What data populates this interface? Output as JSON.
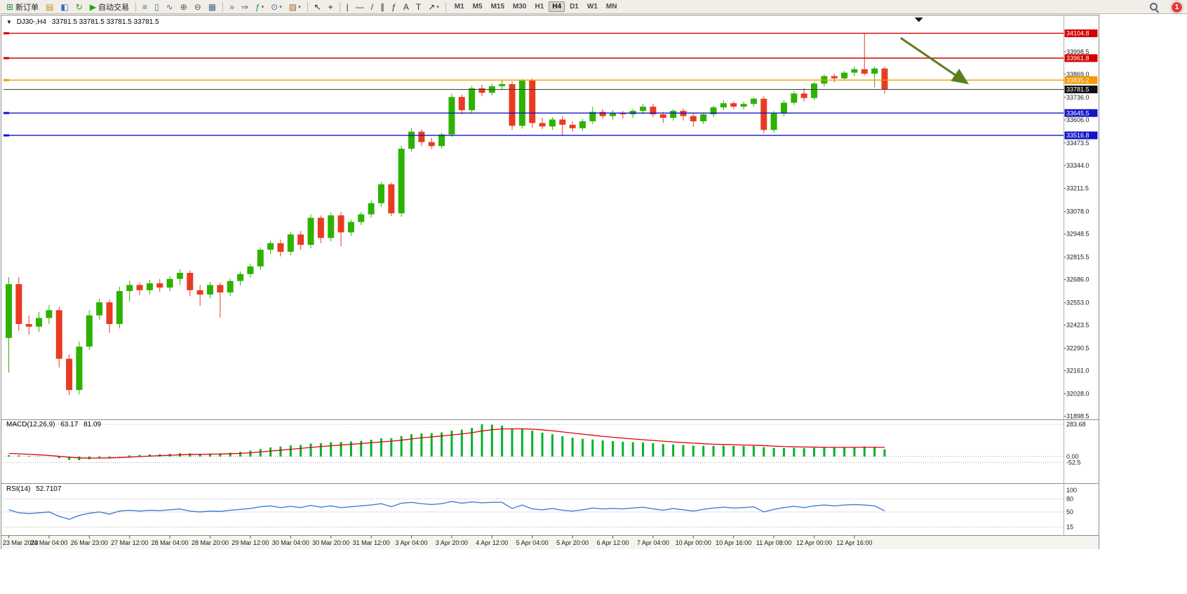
{
  "toolbar": {
    "items": [
      {
        "name": "new-order-button",
        "label": "新订单",
        "glyph": "⊞",
        "color": "#18923c"
      },
      {
        "name": "new-chart-icon",
        "glyph": "▤",
        "color": "#c09020"
      },
      {
        "name": "profiles-icon",
        "glyph": "◧",
        "color": "#3a6ec0"
      },
      {
        "name": "refresh-icon",
        "glyph": "↻",
        "color": "#28a028"
      },
      {
        "name": "autotrade-button",
        "label": "自动交易",
        "glyph": "▶",
        "color": "#18a818"
      },
      {
        "name": "sep"
      },
      {
        "name": "bar-chart-type-icon",
        "glyph": "≡",
        "color": "#50688c"
      },
      {
        "name": "candlestick-type-icon",
        "glyph": "▯",
        "color": "#50688c"
      },
      {
        "name": "line-chart-type-icon",
        "glyph": "∿",
        "color": "#50688c"
      },
      {
        "name": "zoom-in-icon",
        "glyph": "⊕",
        "color": "#555555"
      },
      {
        "name": "zoom-out-icon",
        "glyph": "⊖",
        "color": "#555555"
      },
      {
        "name": "tile-windows-icon",
        "glyph": "▦",
        "color": "#50688c"
      },
      {
        "name": "sep"
      },
      {
        "name": "autoscroll-icon",
        "glyph": "»",
        "color": "#50688c"
      },
      {
        "name": "chart-shift-icon",
        "glyph": "⇒",
        "color": "#50688c"
      },
      {
        "name": "indicators-icon",
        "glyph": "ƒ",
        "color": "#18923c",
        "caret": true
      },
      {
        "name": "periods-icon",
        "glyph": "⊙",
        "color": "#50688c",
        "caret": true
      },
      {
        "name": "templates-icon",
        "glyph": "▨",
        "color": "#a07030",
        "caret": true
      },
      {
        "name": "sep"
      },
      {
        "name": "cursor-icon",
        "glyph": "↖",
        "color": "#222222"
      },
      {
        "name": "crosshair-icon",
        "glyph": "+",
        "color": "#222222"
      },
      {
        "name": "sep"
      },
      {
        "name": "vline-icon",
        "glyph": "|",
        "color": "#333333"
      },
      {
        "name": "hline-icon",
        "glyph": "—",
        "color": "#333333"
      },
      {
        "name": "trendline-icon",
        "glyph": "/",
        "color": "#333333"
      },
      {
        "name": "channel-icon",
        "glyph": "∥",
        "color": "#333333"
      },
      {
        "name": "fibo-icon",
        "glyph": "ƒ",
        "color": "#333333"
      },
      {
        "name": "text-icon",
        "glyph": "A",
        "color": "#333333"
      },
      {
        "name": "label-icon",
        "glyph": "T",
        "color": "#333333"
      },
      {
        "name": "arrows-icon",
        "glyph": "↗",
        "color": "#333333",
        "caret": true
      },
      {
        "name": "sep"
      }
    ],
    "timeframes": [
      "M1",
      "M5",
      "M15",
      "M30",
      "H1",
      "H4",
      "D1",
      "W1",
      "MN"
    ],
    "active_timeframe": "H4",
    "notification_count": "1"
  },
  "header": {
    "toggle_glyph": "▼",
    "symbol_period": "DJ30-,H4",
    "quote": "33781.5 33781.5 33781.5 33781.5"
  },
  "chart_data": {
    "type": "candlestick",
    "symbol": "DJ30-",
    "timeframe": "H4",
    "ylim": [
      31885,
      34135
    ],
    "colors": {
      "up": "#2db200",
      "down": "#e83b22",
      "macd_hist": "#00b22d",
      "macd_signal": "#e00000",
      "rsi_line": "#4080d0",
      "current_price": "#3c3c3c"
    },
    "price_axis_ticks": [
      "33998.5",
      "33869.0",
      "33736.0",
      "33606.0",
      "33473.5",
      "33344.0",
      "33211.5",
      "33078.0",
      "32948.5",
      "32815.5",
      "32686.0",
      "32553.0",
      "32423.5",
      "32290.5",
      "32161.0",
      "32028.0",
      "31898.5"
    ],
    "hlines": [
      {
        "label": "34104.8",
        "price": 34104.8,
        "color": "#d40000"
      },
      {
        "label": "33961.8",
        "price": 33961.8,
        "color": "#d40000"
      },
      {
        "label": "33835.2",
        "price": 33835.2,
        "color": "#f59a00"
      },
      {
        "label": "33645.5",
        "price": 33645.5,
        "color": "#1414c8"
      },
      {
        "label": "33516.8",
        "price": 33516.8,
        "color": "#1414c8"
      }
    ],
    "current_price": {
      "label": "33781.5",
      "price": 33781.5
    },
    "ohlc": [
      [
        32350,
        32700,
        32150,
        32660
      ],
      [
        32660,
        32700,
        32390,
        32430
      ],
      [
        32430,
        32480,
        32370,
        32415
      ],
      [
        32415,
        32500,
        32385,
        32465
      ],
      [
        32465,
        32540,
        32430,
        32510
      ],
      [
        32510,
        32530,
        32180,
        32230
      ],
      [
        32230,
        32255,
        32020,
        32050
      ],
      [
        32050,
        32330,
        32025,
        32300
      ],
      [
        32300,
        32510,
        32280,
        32480
      ],
      [
        32480,
        32575,
        32455,
        32555
      ],
      [
        32555,
        32570,
        32380,
        32430
      ],
      [
        32430,
        32645,
        32405,
        32620
      ],
      [
        32620,
        32680,
        32560,
        32655
      ],
      [
        32655,
        32670,
        32595,
        32625
      ],
      [
        32625,
        32685,
        32600,
        32665
      ],
      [
        32665,
        32690,
        32615,
        32640
      ],
      [
        32640,
        32705,
        32620,
        32690
      ],
      [
        32690,
        32745,
        32655,
        32725
      ],
      [
        32725,
        32740,
        32590,
        32625
      ],
      [
        32625,
        32655,
        32535,
        32600
      ],
      [
        32600,
        32672,
        32578,
        32655
      ],
      [
        32655,
        32668,
        32468,
        32612
      ],
      [
        32612,
        32692,
        32592,
        32678
      ],
      [
        32678,
        32732,
        32652,
        32718
      ],
      [
        32718,
        32778,
        32698,
        32762
      ],
      [
        32762,
        32872,
        32742,
        32858
      ],
      [
        32858,
        32912,
        32832,
        32896
      ],
      [
        32896,
        32916,
        32820,
        32846
      ],
      [
        32846,
        32962,
        32826,
        32946
      ],
      [
        32946,
        32966,
        32858,
        32886
      ],
      [
        32886,
        33062,
        32866,
        33042
      ],
      [
        33042,
        33056,
        32896,
        32926
      ],
      [
        32926,
        33072,
        32906,
        33056
      ],
      [
        33056,
        33076,
        32878,
        32958
      ],
      [
        32958,
        33032,
        32938,
        33018
      ],
      [
        33018,
        33077,
        33000,
        33062
      ],
      [
        33062,
        33142,
        33042,
        33126
      ],
      [
        33126,
        33248,
        33106,
        33235
      ],
      [
        33235,
        33245,
        33052,
        33068
      ],
      [
        33068,
        33458,
        33048,
        33440
      ],
      [
        33440,
        33558,
        33425,
        33538
      ],
      [
        33538,
        33552,
        33455,
        33478
      ],
      [
        33478,
        33502,
        33438,
        33455
      ],
      [
        33455,
        33532,
        33442,
        33522
      ],
      [
        33522,
        33758,
        33508,
        33738
      ],
      [
        33738,
        33752,
        33638,
        33662
      ],
      [
        33662,
        33802,
        33648,
        33788
      ],
      [
        33788,
        33808,
        33742,
        33762
      ],
      [
        33762,
        33815,
        33746,
        33800
      ],
      [
        33800,
        33838,
        33778,
        33812
      ],
      [
        33812,
        33828,
        33548,
        33572
      ],
      [
        33572,
        33842,
        33556,
        33832
      ],
      [
        33832,
        33845,
        33562,
        33588
      ],
      [
        33588,
        33618,
        33552,
        33568
      ],
      [
        33568,
        33622,
        33548,
        33608
      ],
      [
        33608,
        33628,
        33518,
        33578
      ],
      [
        33578,
        33598,
        33538,
        33558
      ],
      [
        33558,
        33612,
        33542,
        33598
      ],
      [
        33598,
        33682,
        33582,
        33652
      ],
      [
        33652,
        33668,
        33612,
        33628
      ],
      [
        33628,
        33662,
        33608,
        33648
      ],
      [
        33648,
        33658,
        33612,
        33638
      ],
      [
        33638,
        33668,
        33618,
        33658
      ],
      [
        33658,
        33698,
        33638,
        33682
      ],
      [
        33682,
        33698,
        33622,
        33638
      ],
      [
        33638,
        33652,
        33588,
        33618
      ],
      [
        33618,
        33668,
        33602,
        33658
      ],
      [
        33658,
        33672,
        33602,
        33628
      ],
      [
        33628,
        33642,
        33568,
        33598
      ],
      [
        33598,
        33648,
        33582,
        33638
      ],
      [
        33638,
        33688,
        33622,
        33678
      ],
      [
        33678,
        33718,
        33662,
        33702
      ],
      [
        33702,
        33712,
        33668,
        33682
      ],
      [
        33682,
        33712,
        33666,
        33698
      ],
      [
        33698,
        33738,
        33682,
        33728
      ],
      [
        33728,
        33742,
        33528,
        33548
      ],
      [
        33548,
        33658,
        33532,
        33642
      ],
      [
        33642,
        33718,
        33628,
        33705
      ],
      [
        33705,
        33772,
        33692,
        33758
      ],
      [
        33758,
        33788,
        33712,
        33732
      ],
      [
        33732,
        33825,
        33718,
        33815
      ],
      [
        33815,
        33868,
        33798,
        33858
      ],
      [
        33858,
        33872,
        33822,
        33845
      ],
      [
        33845,
        33888,
        33832,
        33878
      ],
      [
        33878,
        33912,
        33858,
        33898
      ],
      [
        33898,
        34104.8,
        33862,
        33872
      ],
      [
        33872,
        33915,
        33792,
        33902
      ],
      [
        33902,
        33912,
        33756,
        33781.5
      ]
    ],
    "time_labels": [
      "23 Mar 2023",
      "24 Mar 04:00",
      "26 Mar 23:00",
      "27 Mar 12:00",
      "28 Mar 04:00",
      "28 Mar 20:00",
      "29 Mar 12:00",
      "30 Mar 04:00",
      "30 Mar 20:00",
      "31 Mar 12:00",
      "3 Apr 04:00",
      "3 Apr 20:00",
      "4 Apr 12:00",
      "5 Apr 04:00",
      "5 Apr 20:00",
      "6 Apr 12:00",
      "7 Apr 04:00",
      "10 Apr 00:00",
      "10 Apr 16:00",
      "11 Apr 08:00",
      "12 Apr 00:00",
      "12 Apr 16:00"
    ],
    "label_step": 4,
    "macd": {
      "label": "MACD(12,26,9)",
      "value_main": "63.17",
      "value_signal": "81.09",
      "axis_labels": [
        "283.68",
        "0.00",
        "-52.5"
      ],
      "axis_values": [
        283.68,
        0,
        -52.5
      ],
      "main": [
        12,
        10,
        6,
        2,
        -2,
        -14,
        -30,
        -32,
        -24,
        -12,
        -10,
        2,
        10,
        14,
        18,
        20,
        24,
        30,
        28,
        24,
        26,
        28,
        34,
        42,
        52,
        66,
        80,
        88,
        98,
        102,
        114,
        118,
        126,
        128,
        132,
        138,
        148,
        160,
        162,
        180,
        196,
        204,
        206,
        212,
        228,
        236,
        252,
        283.68,
        280,
        272,
        248,
        244,
        228,
        210,
        196,
        180,
        166,
        156,
        150,
        142,
        136,
        130,
        126,
        124,
        118,
        110,
        106,
        102,
        96,
        94,
        94,
        96,
        94,
        92,
        92,
        82,
        76,
        74,
        76,
        74,
        76,
        80,
        80,
        82,
        84,
        88,
        80,
        63.17
      ],
      "signal": [
        28,
        24,
        20,
        15,
        10,
        2,
        -6,
        -12,
        -14,
        -13,
        -12,
        -9,
        -5,
        0,
        4,
        8,
        11,
        15,
        18,
        19,
        21,
        22,
        25,
        28,
        33,
        40,
        48,
        56,
        64,
        72,
        80,
        88,
        95,
        102,
        108,
        114,
        121,
        129,
        135,
        144,
        155,
        165,
        173,
        181,
        190,
        199,
        210,
        225,
        236,
        243,
        244,
        244,
        241,
        235,
        227,
        217,
        207,
        197,
        188,
        178,
        170,
        162,
        155,
        148,
        142,
        135,
        129,
        123,
        118,
        113,
        109,
        106,
        104,
        101,
        99,
        96,
        92,
        88,
        86,
        84,
        83,
        82,
        81,
        81,
        81,
        82,
        82,
        81.09
      ]
    },
    "rsi": {
      "label": "RSI(14)",
      "value": "52.7107",
      "axis_labels": [
        "100",
        "80",
        "50",
        "15"
      ],
      "axis_values": [
        100,
        80,
        50,
        15
      ],
      "levels": [
        80,
        50,
        15
      ],
      "values": [
        55,
        48,
        46,
        48,
        50,
        40,
        33,
        42,
        47,
        50,
        45,
        52,
        54,
        52,
        54,
        53,
        55,
        57,
        52,
        50,
        52,
        51,
        54,
        56,
        58,
        62,
        64,
        60,
        63,
        60,
        65,
        61,
        64,
        60,
        62,
        64,
        66,
        69,
        62,
        70,
        72,
        69,
        67,
        69,
        74,
        70,
        73,
        71,
        72,
        72,
        58,
        66,
        57,
        55,
        58,
        54,
        52,
        55,
        59,
        57,
        58,
        57,
        59,
        61,
        57,
        54,
        58,
        55,
        52,
        56,
        59,
        61,
        59,
        60,
        62,
        50,
        56,
        60,
        63,
        60,
        64,
        66,
        64,
        66,
        67,
        66,
        64,
        52.71
      ]
    },
    "annotation_arrow": {
      "x1_bar": 88.6,
      "y1_price": 34078,
      "x2_bar": 95.2,
      "y2_price": 33818,
      "color": "#5a7d1e"
    },
    "shift_marker_bar": 90.4
  }
}
